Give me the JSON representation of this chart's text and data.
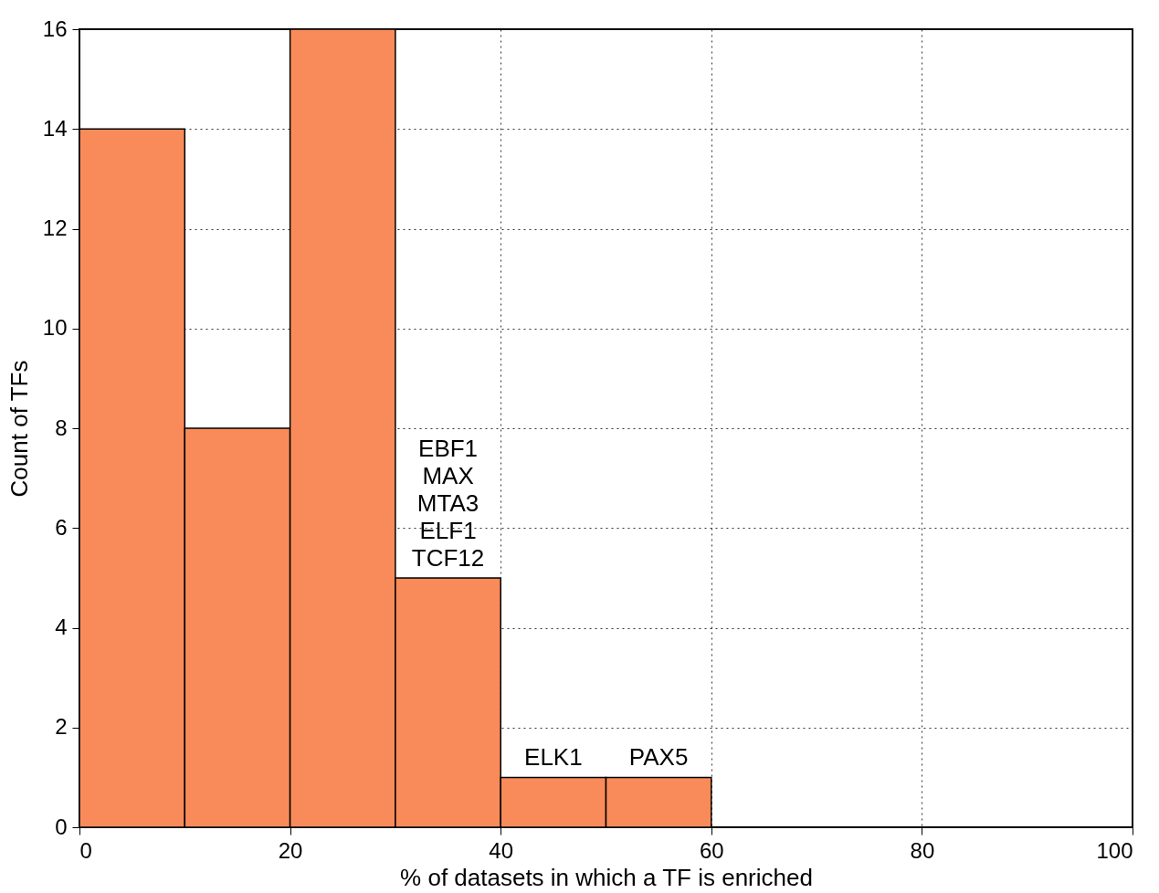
{
  "chart_data": {
    "type": "histogram",
    "xlabel": "% of datasets in which a TF is enriched",
    "ylabel": "Count of TFs",
    "bins": [
      0,
      10,
      20,
      30,
      40,
      50,
      60
    ],
    "values": [
      14,
      8,
      16,
      5,
      1,
      1
    ],
    "color": "#f98b5a",
    "xlim": [
      0,
      100
    ],
    "xticks": [
      0,
      20,
      40,
      60,
      80,
      100
    ],
    "ylim": [
      0,
      16
    ],
    "yticks": [
      0,
      2,
      4,
      6,
      8,
      10,
      12,
      14,
      16
    ],
    "grid": true,
    "annotations": [
      {
        "text": "EBF1\nMAX\nMTA3\nELF1\nTCF12",
        "x": 35,
        "y": 5
      },
      {
        "text": "ELK1",
        "x": 45,
        "y": 1
      },
      {
        "text": "PAX5",
        "x": 55,
        "y": 1
      }
    ]
  }
}
